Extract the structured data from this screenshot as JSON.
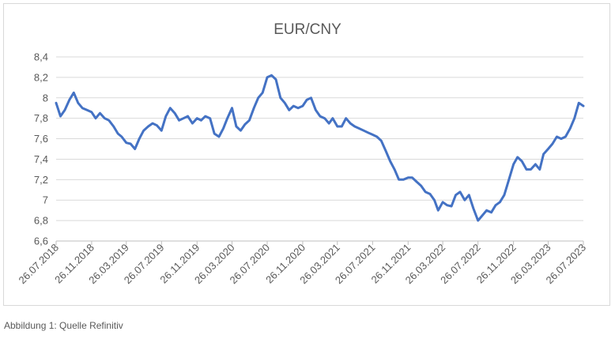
{
  "caption": "Abbildung 1: Quelle Refinitiv",
  "chart_data": {
    "type": "line",
    "title": "EUR/CNY",
    "xlabel": "",
    "ylabel": "",
    "ylim": [
      6.6,
      8.4
    ],
    "yticks": [
      "6,6",
      "6,8",
      "7",
      "7,2",
      "7,4",
      "7,6",
      "7,8",
      "8",
      "8,2",
      "8,4"
    ],
    "xticks": [
      "26.07.2018",
      "26.11.2018",
      "26.03.2019",
      "26.07.2019",
      "26.11.2019",
      "26.03.2020",
      "26.07.2020",
      "26.11.2020",
      "26.03.2021",
      "26.07.2021",
      "26.11.2021",
      "26.03.2022",
      "26.07.2022",
      "26.11.2022",
      "26.03.2023",
      "26.07.2023"
    ],
    "grid": true,
    "legend": "none",
    "line_color": "#4472c4",
    "series": [
      {
        "x": [
          "2018-07-26",
          "2018-08-10",
          "2018-08-25",
          "2018-09-10",
          "2018-09-25",
          "2018-10-10",
          "2018-10-25",
          "2018-11-10",
          "2018-11-26",
          "2018-12-10",
          "2018-12-25",
          "2019-01-10",
          "2019-01-25",
          "2019-02-10",
          "2019-02-25",
          "2019-03-10",
          "2019-03-26",
          "2019-04-10",
          "2019-04-25",
          "2019-05-10",
          "2019-05-25",
          "2019-06-10",
          "2019-06-25",
          "2019-07-10",
          "2019-07-26",
          "2019-08-10",
          "2019-08-25",
          "2019-09-10",
          "2019-09-25",
          "2019-10-10",
          "2019-10-25",
          "2019-11-10",
          "2019-11-26",
          "2019-12-10",
          "2019-12-25",
          "2020-01-10",
          "2020-01-25",
          "2020-02-10",
          "2020-02-25",
          "2020-03-10",
          "2020-03-26",
          "2020-04-10",
          "2020-04-25",
          "2020-05-10",
          "2020-05-25",
          "2020-06-10",
          "2020-06-25",
          "2020-07-10",
          "2020-07-26",
          "2020-08-10",
          "2020-08-25",
          "2020-09-10",
          "2020-09-25",
          "2020-10-10",
          "2020-10-25",
          "2020-11-10",
          "2020-11-26",
          "2020-12-10",
          "2020-12-25",
          "2021-01-10",
          "2021-01-25",
          "2021-02-10",
          "2021-02-25",
          "2021-03-10",
          "2021-03-26",
          "2021-04-10",
          "2021-04-25",
          "2021-05-10",
          "2021-05-25",
          "2021-06-10",
          "2021-06-25",
          "2021-07-10",
          "2021-07-26",
          "2021-08-10",
          "2021-08-25",
          "2021-09-10",
          "2021-09-25",
          "2021-10-10",
          "2021-10-25",
          "2021-11-10",
          "2021-11-26",
          "2021-12-10",
          "2021-12-25",
          "2022-01-10",
          "2022-01-25",
          "2022-02-10",
          "2022-02-25",
          "2022-03-10",
          "2022-03-26",
          "2022-04-10",
          "2022-04-25",
          "2022-05-10",
          "2022-05-25",
          "2022-06-10",
          "2022-06-25",
          "2022-07-10",
          "2022-07-26",
          "2022-08-10",
          "2022-08-25",
          "2022-09-10",
          "2022-09-25",
          "2022-10-10",
          "2022-10-25",
          "2022-11-10",
          "2022-11-26",
          "2022-12-10",
          "2022-12-25",
          "2023-01-10",
          "2023-01-25",
          "2023-02-10",
          "2023-02-25",
          "2023-03-10",
          "2023-03-26",
          "2023-04-10",
          "2023-04-25",
          "2023-05-10",
          "2023-05-25",
          "2023-06-10",
          "2023-06-25",
          "2023-07-10",
          "2023-07-26"
        ],
        "values": [
          7.95,
          7.82,
          7.88,
          7.98,
          8.05,
          7.95,
          7.9,
          7.88,
          7.86,
          7.8,
          7.85,
          7.8,
          7.78,
          7.72,
          7.65,
          7.62,
          7.56,
          7.55,
          7.5,
          7.6,
          7.68,
          7.72,
          7.75,
          7.73,
          7.68,
          7.82,
          7.9,
          7.85,
          7.78,
          7.8,
          7.82,
          7.75,
          7.8,
          7.78,
          7.82,
          7.8,
          7.65,
          7.62,
          7.7,
          7.8,
          7.9,
          7.72,
          7.68,
          7.74,
          7.78,
          7.9,
          8.0,
          8.05,
          8.2,
          8.22,
          8.18,
          8.0,
          7.95,
          7.88,
          7.92,
          7.9,
          7.92,
          7.98,
          8.0,
          7.88,
          7.82,
          7.8,
          7.75,
          7.8,
          7.72,
          7.72,
          7.8,
          7.75,
          7.72,
          7.7,
          7.68,
          7.66,
          7.64,
          7.62,
          7.58,
          7.48,
          7.38,
          7.3,
          7.2,
          7.2,
          7.22,
          7.22,
          7.18,
          7.14,
          7.08,
          7.06,
          7.0,
          6.9,
          6.98,
          6.95,
          6.94,
          7.05,
          7.08,
          7.0,
          7.05,
          6.92,
          6.8,
          6.85,
          6.9,
          6.88,
          6.95,
          6.98,
          7.05,
          7.2,
          7.35,
          7.42,
          7.38,
          7.3,
          7.3,
          7.35,
          7.3,
          7.45,
          7.5,
          7.55,
          7.62,
          7.6,
          7.62,
          7.7,
          7.8,
          7.95,
          7.92
        ]
      }
    ]
  }
}
